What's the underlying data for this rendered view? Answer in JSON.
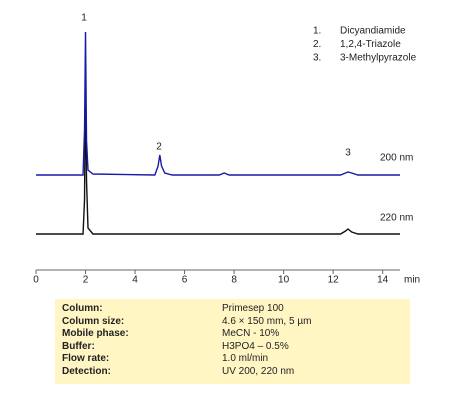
{
  "chart_data": {
    "type": "line",
    "xlabel": "min",
    "xlim": [
      0,
      14.7
    ],
    "xticks": [
      0,
      2,
      4,
      6,
      8,
      10,
      12,
      14
    ],
    "ylim": [
      0,
      250
    ],
    "peak_labels": [
      "1",
      "2",
      "3"
    ],
    "legend": [
      {
        "number": "1.",
        "name": "Dicyandiamide"
      },
      {
        "number": "2.",
        "name": "1,2,4-Triazole"
      },
      {
        "number": "3.",
        "name": "3-Methylpyrazole"
      }
    ],
    "series": [
      {
        "name": "200 nm",
        "color": "#1a1aa8",
        "x": [
          0,
          1.9,
          1.96,
          2.0,
          2.04,
          2.1,
          2.3,
          4.8,
          4.93,
          5.0,
          5.07,
          5.2,
          5.5,
          7.4,
          7.6,
          7.8,
          12.3,
          12.5,
          12.6,
          12.75,
          13.0,
          14.7
        ],
        "values": [
          95,
          95,
          140,
          238,
          130,
          100,
          96,
          95,
          104,
          115,
          104,
          97,
          95,
          95,
          97,
          95,
          95,
          97,
          98,
          97,
          95,
          95
        ]
      },
      {
        "name": "220 nm",
        "color": "#111111",
        "x": [
          0,
          1.9,
          1.96,
          2.0,
          2.04,
          2.1,
          2.3,
          12.3,
          12.5,
          12.6,
          12.75,
          13.0,
          14.7
        ],
        "values": [
          36,
          36,
          70,
          195,
          90,
          42,
          36,
          36,
          39,
          41,
          38,
          36,
          36
        ]
      }
    ]
  },
  "conditions": {
    "rows": [
      [
        "Column:",
        "Primesep 100"
      ],
      [
        "Column size:",
        "4.6 × 150 mm, 5 µm"
      ],
      [
        "Mobile phase:",
        "MeCN - 10%"
      ],
      [
        "Buffer:",
        "H3PO4 – 0.5%"
      ],
      [
        "Flow rate:",
        "1.0 ml/min"
      ],
      [
        "Detection:",
        "UV 200, 220 nm"
      ]
    ]
  }
}
